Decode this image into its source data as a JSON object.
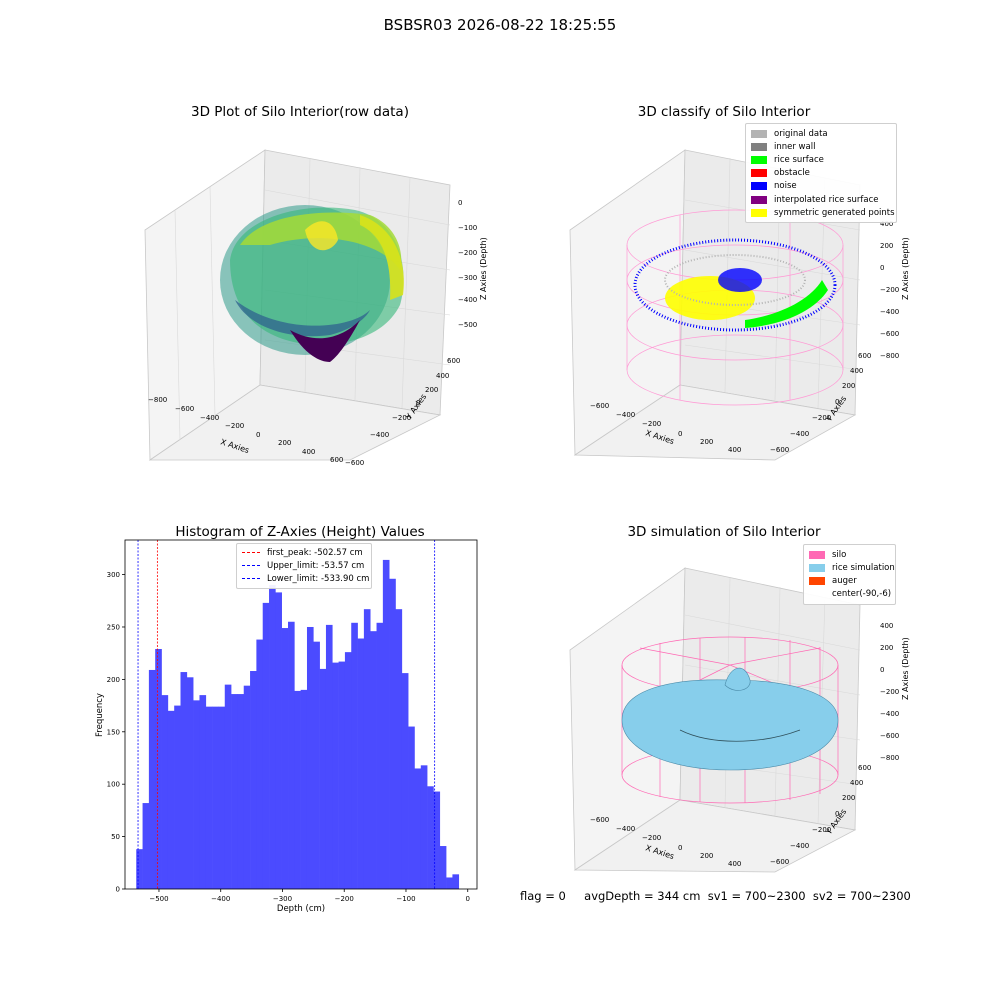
{
  "suptitle": "BSBSR03 2026-08-22 18:25:55",
  "panels": {
    "raw": {
      "title": "3D Plot of Silo Interior(row data)",
      "xlabel": "X Axies",
      "ylabel": "Y Axies",
      "zlabel": "Z Axies (Depth)",
      "xticks": [
        "−800",
        "−600",
        "−400",
        "−200",
        "0",
        "200",
        "400",
        "600"
      ],
      "yticks": [
        "−600",
        "−400",
        "−200",
        "0",
        "200",
        "400",
        "600"
      ],
      "zticks": [
        "0",
        "−100",
        "−200",
        "−300",
        "−400",
        "−500"
      ]
    },
    "classify": {
      "title": "3D classify of Silo Interior",
      "xlabel": "X Axies",
      "ylabel": "Y Axies",
      "zlabel": "Z Axies (Depth)",
      "xticks": [
        "−600",
        "−400",
        "−200",
        "0",
        "200",
        "400"
      ],
      "yticks": [
        "−600",
        "−400",
        "−200",
        "0",
        "200",
        "400",
        "600"
      ],
      "zticks": [
        "400",
        "200",
        "0",
        "−200",
        "−400",
        "−600",
        "−800"
      ],
      "legend": [
        {
          "label": "original data",
          "color": "#b3b3b3"
        },
        {
          "label": "inner wall",
          "color": "#808080"
        },
        {
          "label": "rice surface",
          "color": "#00ff00"
        },
        {
          "label": "obstacle",
          "color": "#ff0000"
        },
        {
          "label": "noise",
          "color": "#0000ff"
        },
        {
          "label": "interpolated rice surface",
          "color": "#800080"
        },
        {
          "label": "symmetric generated points",
          "color": "#ffff00"
        }
      ]
    },
    "simulation": {
      "title": "3D simulation of Silo Interior",
      "xlabel": "X Axies",
      "ylabel": "Y Axies",
      "zlabel": "Z Axies (Depth)",
      "xticks": [
        "−600",
        "−400",
        "−200",
        "0",
        "200",
        "400"
      ],
      "yticks": [
        "−600",
        "−400",
        "−200",
        "0",
        "200",
        "400",
        "600"
      ],
      "zticks": [
        "400",
        "200",
        "0",
        "−200",
        "−400",
        "−600",
        "−800"
      ],
      "legend": [
        {
          "label": "silo",
          "color": "#ff69b4"
        },
        {
          "label": "rice simulation",
          "color": "#87ceeb"
        },
        {
          "label": "auger",
          "color": "#ff4500"
        },
        {
          "label": "center(-90,-6)",
          "color": ""
        }
      ]
    }
  },
  "chart_data": {
    "type": "bar",
    "title": "Histogram of Z-Axies (Height) Values",
    "xlabel": "Depth (cm)",
    "ylabel": "Frequency",
    "xlim": [
      -555,
      15
    ],
    "ylim": [
      0,
      333
    ],
    "xticks": [
      -500,
      -400,
      -300,
      -200,
      -100,
      0
    ],
    "xtick_labels": [
      "−500",
      "−400",
      "−300",
      "−200",
      "−100",
      "0"
    ],
    "yticks": [
      0,
      50,
      100,
      150,
      200,
      250,
      300
    ],
    "bin_start": -536.8,
    "bin_width": 10.24,
    "values": [
      38,
      82,
      209,
      229,
      185,
      170,
      175,
      207,
      202,
      180,
      185,
      174,
      174,
      174,
      195,
      186,
      186,
      194,
      208,
      238,
      273,
      290,
      283,
      249,
      255,
      189,
      190,
      250,
      236,
      210,
      252,
      216,
      217,
      226,
      254,
      239,
      267,
      246,
      254,
      314,
      296,
      267,
      206,
      155,
      115,
      118,
      98,
      93,
      41,
      11,
      14
    ],
    "bar_color": "#4b4bff",
    "vlines": [
      {
        "label": "first_peak: -502.57 cm",
        "x": -502.57,
        "color": "#ff0000"
      },
      {
        "label": "Upper_limit: -53.57 cm",
        "x": -53.57,
        "color": "#0000ff"
      },
      {
        "label": "Lower_limit: -533.90 cm",
        "x": -533.9,
        "color": "#0000ff"
      }
    ],
    "legend_position": "top-center"
  },
  "footer": {
    "flag": "flag = 0",
    "stats": "avgDepth = 344 cm  sv1 = 700~2300  sv2 = 700~2300"
  }
}
